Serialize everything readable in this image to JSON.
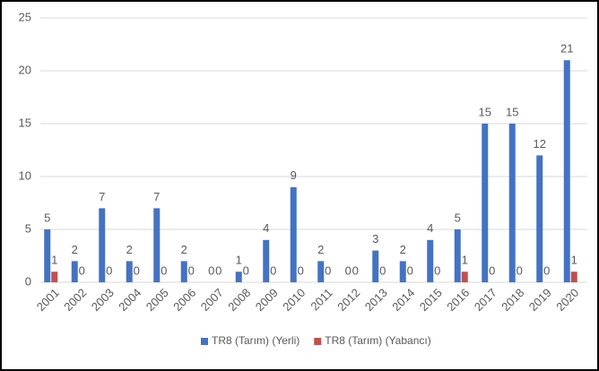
{
  "chart_data": {
    "type": "bar",
    "categories": [
      "2001",
      "2002",
      "2003",
      "2004",
      "2005",
      "2006",
      "2007",
      "2008",
      "2009",
      "2010",
      "2011",
      "2012",
      "2013",
      "2014",
      "2015",
      "2016",
      "2017",
      "2018",
      "2019",
      "2020"
    ],
    "series": [
      {
        "name": "TR8 (Tarım) (Yerli)",
        "color": "#4472c4",
        "values": [
          5,
          2,
          7,
          2,
          7,
          2,
          0,
          1,
          4,
          9,
          2,
          0,
          3,
          2,
          4,
          5,
          15,
          15,
          12,
          21
        ]
      },
      {
        "name": "TR8 (Tarım) (Yabancı)",
        "color": "#c0504d",
        "values": [
          1,
          0,
          0,
          0,
          0,
          0,
          0,
          0,
          0,
          0,
          0,
          0,
          0,
          0,
          0,
          1,
          0,
          0,
          0,
          1
        ]
      }
    ],
    "ylim": [
      0,
      25
    ],
    "yticks": [
      0,
      5,
      10,
      15,
      20,
      25
    ],
    "grid": true,
    "legend": "bottom"
  }
}
